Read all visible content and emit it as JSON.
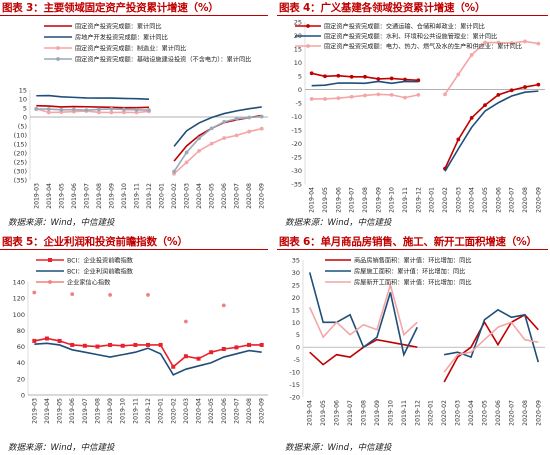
{
  "charts": [
    {
      "title": "图表 3：主要领域固定资产投资累计增速（%）",
      "source": "数据来源：Wind，中信建投",
      "chart_data": {
        "type": "line",
        "categories": [
          "2019-03",
          "2019-04",
          "2019-05",
          "2019-06",
          "2019-07",
          "2019-08",
          "2019-09",
          "2019-10",
          "2019-11",
          "2019-12",
          "2020-01",
          "2020-02",
          "2020-03",
          "2020-04",
          "2020-05",
          "2020-06",
          "2020-07",
          "2020-08",
          "2020-09"
        ],
        "ylim": [
          -35,
          15
        ],
        "yticks": [
          15,
          10,
          5,
          0,
          -5,
          -10,
          -15,
          -20,
          -25,
          -30,
          -35
        ],
        "yticklabels": [
          "15",
          "10",
          "5",
          "0",
          "(5)",
          "(10)",
          "(15)",
          "(20)",
          "(25)",
          "(30)",
          "(35)"
        ],
        "series": [
          {
            "name": "固定资产投资完成额：累计同比",
            "color": "#c00000",
            "marker": "none",
            "values": [
              6.3,
              6.1,
              5.6,
              5.8,
              5.7,
              5.5,
              5.4,
              5.2,
              5.2,
              5.4,
              null,
              -24.5,
              -16.1,
              -10.3,
              -6.3,
              -3.1,
              -1.6,
              -0.3,
              0.8
            ]
          },
          {
            "name": "房地产开发投资完成额：累计同比",
            "color": "#1f4e79",
            "marker": "none",
            "values": [
              11.8,
              11.9,
              11.2,
              10.9,
              10.6,
              10.5,
              10.5,
              10.3,
              10.2,
              9.9,
              null,
              -16.3,
              -7.7,
              -3.3,
              -0.3,
              1.9,
              3.4,
              4.6,
              5.6
            ]
          },
          {
            "name": "固定资产投资完成额：制造业：累计同比",
            "color": "#f4a6a6",
            "marker": "circle",
            "values": [
              4.6,
              2.5,
              2.7,
              3.0,
              3.3,
              2.6,
              2.5,
              2.6,
              2.5,
              3.1,
              null,
              -31.5,
              -25.2,
              -18.8,
              -14.8,
              -11.7,
              -10.2,
              -8.1,
              -6.5
            ]
          },
          {
            "name": "固定资产投资完成额：基础设施建设投资（不含电力）：累计同比",
            "color": "#9aa9b8",
            "marker": "circle",
            "values": [
              4.4,
              4.4,
              4.0,
              4.1,
              3.8,
              4.2,
              4.5,
              4.2,
              4.0,
              3.8,
              null,
              -30.3,
              -19.7,
              -11.8,
              -6.3,
              -2.7,
              -1.0,
              -0.3,
              0.2
            ]
          }
        ]
      }
    },
    {
      "title": "图表 4：广义基建各领域投资累计增速（%）",
      "source": "数据来源：Wind，中信建投",
      "chart_data": {
        "type": "line",
        "categories": [
          "2019-04",
          "2019-05",
          "2019-06",
          "2019-07",
          "2019-08",
          "2019-09",
          "2019-10",
          "2019-11",
          "2019-12",
          "2020-01",
          "2020-02",
          "2020-03",
          "2020-04",
          "2020-05",
          "2020-06",
          "2020-07",
          "2020-08",
          "2020-09"
        ],
        "ylim": [
          -35,
          25
        ],
        "yticks": [
          25,
          20,
          15,
          10,
          5,
          0,
          -5,
          -10,
          -15,
          -20,
          -25,
          -30,
          -35
        ],
        "yticklabels": [
          "25",
          "20",
          "15",
          "10",
          "5",
          "0",
          "-5",
          "-10",
          "-15",
          "-20",
          "-25",
          "-30",
          "-35"
        ],
        "series": [
          {
            "name": "固定资产投资完成额：交通运输、仓储和邮政业：累计同比",
            "color": "#c00000",
            "marker": "circle",
            "values": [
              6.0,
              4.9,
              5.1,
              4.7,
              4.7,
              3.9,
              4.1,
              3.7,
              3.4,
              null,
              -29.3,
              -18.5,
              -10.5,
              -5.8,
              -2.0,
              -0.3,
              0.9,
              1.8
            ]
          },
          {
            "name": "固定资产投资完成额：水利、环境和公共设施管理业：累计同比",
            "color": "#1f4e79",
            "marker": "none",
            "values": [
              1.4,
              1.6,
              2.4,
              2.4,
              2.3,
              3.0,
              2.3,
              3.0,
              2.9,
              null,
              -30.3,
              -22.0,
              -14.0,
              -8.0,
              -4.9,
              -2.4,
              -1.0,
              -0.6
            ]
          },
          {
            "name": "固定资产投资完成额：电力、热力、燃气及水的生产和供应业：累计同比",
            "color": "#f4a6a6",
            "marker": "circle",
            "values": [
              -3.5,
              -3.5,
              -3.2,
              -2.7,
              -2.2,
              -1.8,
              -2.0,
              -3.0,
              -2.0,
              null,
              -1.8,
              5.6,
              12.8,
              17.4,
              17.4,
              17.2,
              17.8,
              17.0
            ]
          }
        ]
      }
    },
    {
      "title": "图表 5：企业利润和投资前瞻指数（%）",
      "source": "数据来源：Wind，中信建投",
      "chart_data": {
        "type": "line",
        "categories": [
          "2019-03",
          "2019-04",
          "2019-05",
          "2019-06",
          "2019-07",
          "2019-08",
          "2019-09",
          "2019-10",
          "2019-11",
          "2019-12",
          "2020-01",
          "2020-02",
          "2020-03",
          "2020-04",
          "2020-05",
          "2020-06",
          "2020-07",
          "2020-08",
          "2020-09"
        ],
        "ylim": [
          0,
          140
        ],
        "yticks": [
          140,
          120,
          100,
          80,
          60,
          40,
          20,
          0
        ],
        "yticklabels": [
          "140",
          "120",
          "100",
          "80",
          "60",
          "40",
          "20",
          "0"
        ],
        "series": [
          {
            "name": "BCI：企业投资前瞻指数",
            "color": "#e8222c",
            "marker": "square",
            "values": [
              67,
              70,
              67,
              62,
              61,
              60,
              62,
              61,
              62,
              62,
              62,
              35,
              48,
              45,
              53,
              57,
              59,
              62,
              62
            ]
          },
          {
            "name": "BCI：企业利润前瞻指数",
            "color": "#1f4e79",
            "marker": "none",
            "values": [
              63,
              64,
              62,
              56,
              53,
              50,
              47,
              50,
              53,
              58,
              51,
              25,
              32,
              36,
              40,
              47,
              51,
              55,
              53
            ]
          },
          {
            "name": "企业家信心指数",
            "color": "#f08080",
            "marker": "circle",
            "values": [
              127,
              null,
              null,
              125,
              null,
              null,
              124,
              null,
              null,
              124,
              null,
              null,
              91,
              null,
              null,
              111,
              null,
              null,
              null
            ]
          }
        ]
      }
    },
    {
      "title": "图表 6：单月商品房销售、施工、新开工面积增速（%）",
      "source": "数据来源：Wind，中信建投",
      "chart_data": {
        "type": "line",
        "categories": [
          "2019-04",
          "2019-05",
          "2019-06",
          "2019-07",
          "2019-08",
          "2019-09",
          "2019-10",
          "2019-11",
          "2019-12",
          "2020-01",
          "2020-02",
          "2020-03",
          "2020-04",
          "2020-05",
          "2020-06",
          "2020-07",
          "2020-08",
          "2020-09"
        ],
        "ylim": [
          -20,
          35
        ],
        "yticks": [
          35,
          30,
          25,
          20,
          15,
          10,
          5,
          0,
          -5,
          -10,
          -15,
          -20
        ],
        "yticklabels": [
          "35",
          "30",
          "25",
          "20",
          "15",
          "10",
          "5",
          "0",
          "-5",
          "-10",
          "-15",
          "-20"
        ],
        "series": [
          {
            "name": "商品房销售面积：累计值：环比增加：同比",
            "color": "#c00000",
            "marker": "none",
            "values": [
              -2,
              -7,
              -3,
              -4,
              0,
              3,
              2,
              1,
              0,
              null,
              -14,
              -4,
              0,
              10,
              1,
              10,
              13,
              7
            ]
          },
          {
            "name": "房屋施工面积：累计值：环比增加：同比",
            "color": "#1f4e79",
            "marker": "none",
            "values": [
              30,
              10,
              10,
              13,
              0,
              4,
              22,
              -3,
              8,
              null,
              -3,
              -2,
              -4,
              11,
              15,
              12,
              13,
              -6
            ]
          },
          {
            "name": "房屋新开工面积：累计值：环比增加：同比",
            "color": "#f4a6a6",
            "marker": "none",
            "values": [
              16,
              4,
              10,
              5,
              9,
              7,
              25,
              5,
              10,
              null,
              -10,
              -3,
              -2,
              3,
              8,
              10,
              3,
              2
            ]
          }
        ]
      }
    }
  ]
}
